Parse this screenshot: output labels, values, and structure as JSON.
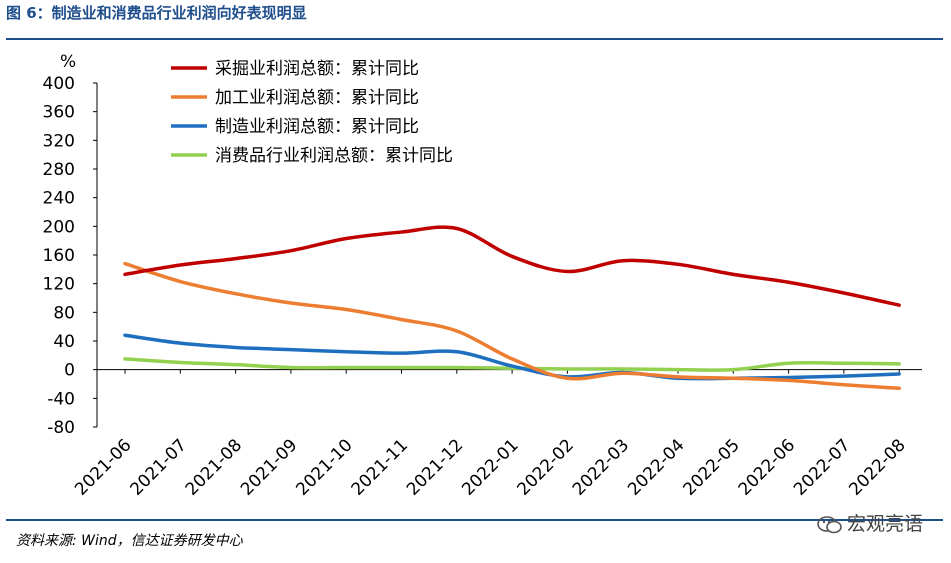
{
  "header": {
    "title": "图 6：制造业和消费品行业利润向好表现明显"
  },
  "footer": {
    "source": "资料来源: Wind，信达证券研发中心",
    "watermark": "宏观亮语",
    "watermark_icon": "wechat-icon"
  },
  "chart_data": {
    "type": "line",
    "title": "",
    "xlabel": "",
    "ylabel": "%",
    "ylim": [
      -80,
      400
    ],
    "yticks": [
      -80,
      -40,
      0,
      40,
      80,
      120,
      160,
      200,
      240,
      280,
      320,
      360,
      400
    ],
    "categories": [
      "2021-06",
      "2021-07",
      "2021-08",
      "2021-09",
      "2021-10",
      "2021-11",
      "2021-12",
      "2022-01",
      "2022-02",
      "2022-03",
      "2022-04",
      "2022-05",
      "2022-06",
      "2022-07",
      "2022-08"
    ],
    "grid": false,
    "legend_position": "top-left",
    "series": [
      {
        "name": "采掘业利润总额：累计同比",
        "color": "#c00000",
        "values": [
          133,
          146,
          155,
          166,
          183,
          192,
          197,
          158,
          137,
          152,
          147,
          133,
          122,
          107,
          90
        ]
      },
      {
        "name": "加工业利润总额：累计同比",
        "color": "#ed7d31",
        "values": [
          148,
          123,
          106,
          93,
          84,
          70,
          54,
          15,
          -12,
          -5,
          -10,
          -12,
          -15,
          -21,
          -26
        ]
      },
      {
        "name": "制造业利润总额：累计同比",
        "color": "#1f6fc0",
        "values": [
          48,
          37,
          31,
          28,
          25,
          23,
          25,
          5,
          -10,
          -4,
          -12,
          -12,
          -11,
          -9,
          -6
        ]
      },
      {
        "name": "消费品行业利润总额：累计同比",
        "color": "#92d050",
        "values": [
          15,
          10,
          7,
          3,
          3,
          3,
          3,
          2,
          1,
          1,
          0,
          0,
          9,
          9,
          8
        ]
      }
    ]
  }
}
